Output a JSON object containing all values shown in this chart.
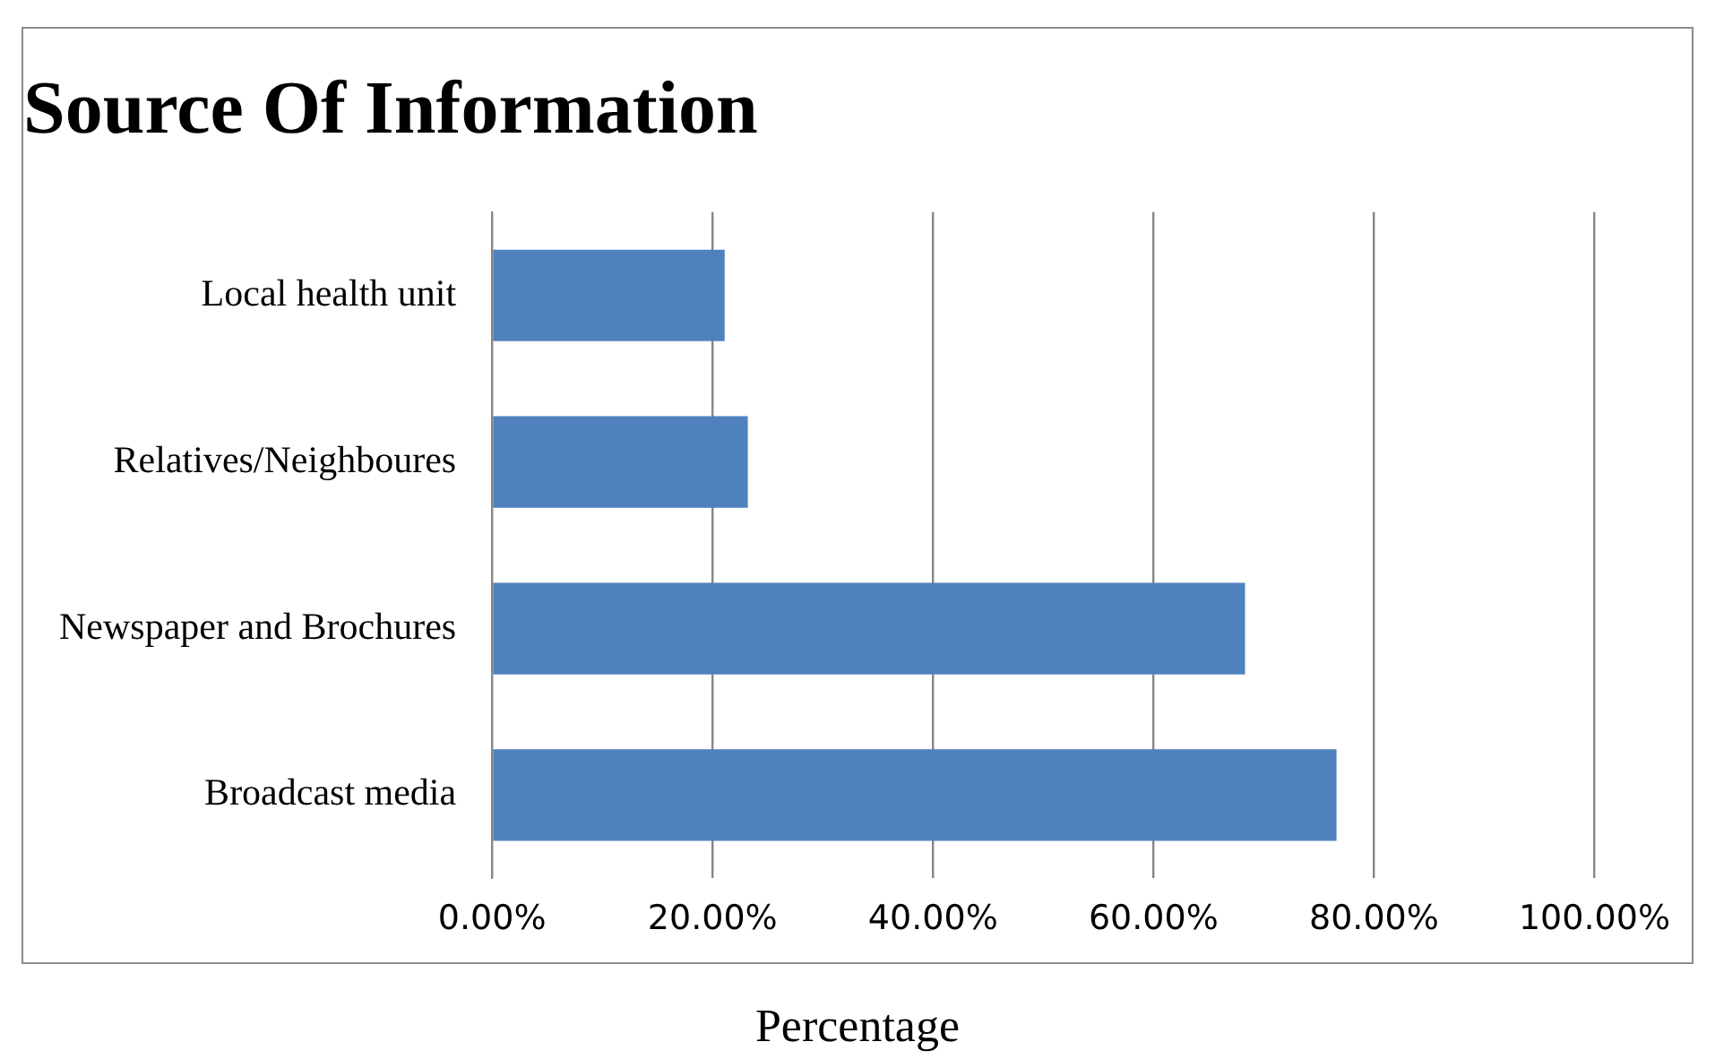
{
  "chart_data": {
    "type": "bar",
    "orientation": "horizontal",
    "title": "Source Of Information",
    "xlabel": "Percentage",
    "categories": [
      "Local health unit",
      "Relatives/Neighboures",
      "Newspaper and Brochures",
      "Broadcast media"
    ],
    "values": [
      21.1,
      23.2,
      68.3,
      76.6
    ],
    "color": "#4f81bd",
    "xlim": [
      0,
      100
    ],
    "xticks": [
      {
        "value": 0,
        "label": "0.00%"
      },
      {
        "value": 20,
        "label": "20.00%"
      },
      {
        "value": 40,
        "label": "40.00%"
      },
      {
        "value": 60,
        "label": "60.00%"
      },
      {
        "value": 80,
        "label": "80.00%"
      },
      {
        "value": 100,
        "label": "100.00%"
      }
    ],
    "grid": "x",
    "legend": false
  }
}
